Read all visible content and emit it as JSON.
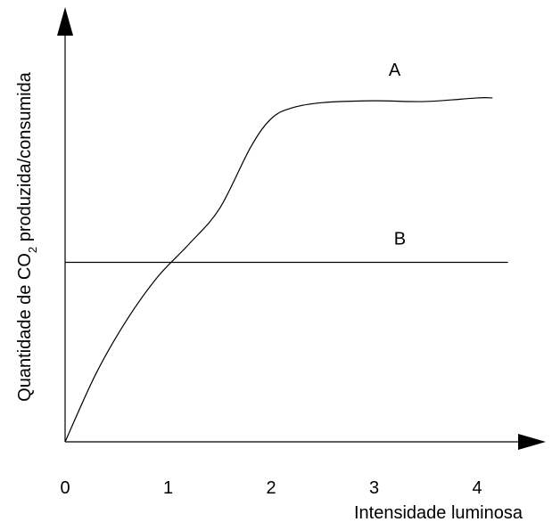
{
  "chart_data": {
    "type": "line",
    "title": "",
    "xlabel": "Intensidade luminosa",
    "ylabel": {
      "prefix": "Quantidade de CO",
      "subscript": "2",
      "suffix": " produzida/consumida"
    },
    "x_ticks": [
      "0",
      "1",
      "2",
      "3",
      "4"
    ],
    "xlim": [
      0,
      4.4
    ],
    "ylim": [
      0,
      1.1
    ],
    "y_ticks": [],
    "grid": false,
    "legend": "none",
    "series": [
      {
        "name": "A",
        "x": [
          0,
          0.3,
          0.6,
          0.9,
          1.2,
          1.5,
          1.8,
          2.0,
          2.2,
          2.5,
          3.0,
          3.5,
          4.0,
          4.15
        ],
        "y": [
          0,
          0.19,
          0.34,
          0.46,
          0.55,
          0.65,
          0.82,
          0.9,
          0.93,
          0.945,
          0.95,
          0.948,
          0.958,
          0.958
        ]
      },
      {
        "name": "B",
        "x": [
          0,
          4.3
        ],
        "y": [
          0.5,
          0.5
        ]
      }
    ]
  }
}
